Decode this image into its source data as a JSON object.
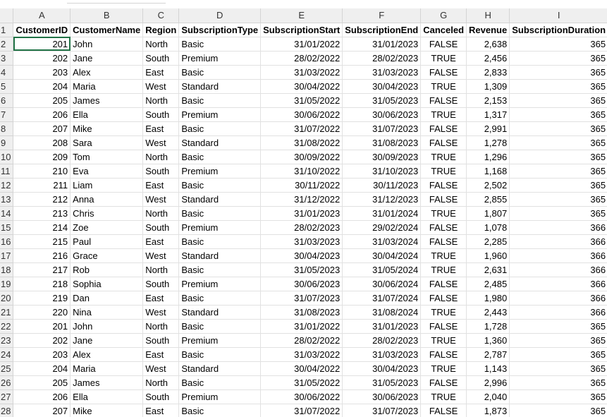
{
  "columns": [
    "A",
    "B",
    "C",
    "D",
    "E",
    "F",
    "G",
    "H",
    "I"
  ],
  "header": [
    "CustomerID",
    "CustomerName",
    "Region",
    "SubscriptionType",
    "SubscriptionStart",
    "SubscriptionEnd",
    "Canceled",
    "Revenue",
    "SubscriptionDuration"
  ],
  "row_numbers": [
    "1",
    "2",
    "3",
    "4",
    "5",
    "6",
    "7",
    "8",
    "9",
    "10",
    "11",
    "12",
    "13",
    "14",
    "15",
    "16",
    "17",
    "18",
    "19",
    "20",
    "21",
    "22",
    "23",
    "24",
    "25",
    "26",
    "27",
    "28"
  ],
  "rows": [
    [
      "201",
      "John",
      "North",
      "Basic",
      "31/01/2022",
      "31/01/2023",
      "FALSE",
      "2,638",
      "365"
    ],
    [
      "202",
      "Jane",
      "South",
      "Premium",
      "28/02/2022",
      "28/02/2023",
      "TRUE",
      "2,456",
      "365"
    ],
    [
      "203",
      "Alex",
      "East",
      "Basic",
      "31/03/2022",
      "31/03/2023",
      "FALSE",
      "2,833",
      "365"
    ],
    [
      "204",
      "Maria",
      "West",
      "Standard",
      "30/04/2022",
      "30/04/2023",
      "TRUE",
      "1,309",
      "365"
    ],
    [
      "205",
      "James",
      "North",
      "Basic",
      "31/05/2022",
      "31/05/2023",
      "FALSE",
      "2,153",
      "365"
    ],
    [
      "206",
      "Ella",
      "South",
      "Premium",
      "30/06/2022",
      "30/06/2023",
      "TRUE",
      "1,317",
      "365"
    ],
    [
      "207",
      "Mike",
      "East",
      "Basic",
      "31/07/2022",
      "31/07/2023",
      "FALSE",
      "2,991",
      "365"
    ],
    [
      "208",
      "Sara",
      "West",
      "Standard",
      "31/08/2022",
      "31/08/2023",
      "FALSE",
      "1,278",
      "365"
    ],
    [
      "209",
      "Tom",
      "North",
      "Basic",
      "30/09/2022",
      "30/09/2023",
      "TRUE",
      "1,296",
      "365"
    ],
    [
      "210",
      "Eva",
      "South",
      "Premium",
      "31/10/2022",
      "31/10/2023",
      "TRUE",
      "1,168",
      "365"
    ],
    [
      "211",
      "Liam",
      "East",
      "Basic",
      "30/11/2022",
      "30/11/2023",
      "FALSE",
      "2,502",
      "365"
    ],
    [
      "212",
      "Anna",
      "West",
      "Standard",
      "31/12/2022",
      "31/12/2023",
      "FALSE",
      "2,855",
      "365"
    ],
    [
      "213",
      "Chris",
      "North",
      "Basic",
      "31/01/2023",
      "31/01/2024",
      "TRUE",
      "1,807",
      "365"
    ],
    [
      "214",
      "Zoe",
      "South",
      "Premium",
      "28/02/2023",
      "29/02/2024",
      "FALSE",
      "1,078",
      "366"
    ],
    [
      "215",
      "Paul",
      "East",
      "Basic",
      "31/03/2023",
      "31/03/2024",
      "FALSE",
      "2,285",
      "366"
    ],
    [
      "216",
      "Grace",
      "West",
      "Standard",
      "30/04/2023",
      "30/04/2024",
      "TRUE",
      "1,960",
      "366"
    ],
    [
      "217",
      "Rob",
      "North",
      "Basic",
      "31/05/2023",
      "31/05/2024",
      "TRUE",
      "2,631",
      "366"
    ],
    [
      "218",
      "Sophia",
      "South",
      "Premium",
      "30/06/2023",
      "30/06/2024",
      "FALSE",
      "2,485",
      "366"
    ],
    [
      "219",
      "Dan",
      "East",
      "Basic",
      "31/07/2023",
      "31/07/2024",
      "FALSE",
      "1,980",
      "366"
    ],
    [
      "220",
      "Nina",
      "West",
      "Standard",
      "31/08/2023",
      "31/08/2024",
      "TRUE",
      "2,443",
      "366"
    ],
    [
      "201",
      "John",
      "North",
      "Basic",
      "31/01/2022",
      "31/01/2023",
      "FALSE",
      "1,728",
      "365"
    ],
    [
      "202",
      "Jane",
      "South",
      "Premium",
      "28/02/2022",
      "28/02/2023",
      "TRUE",
      "1,360",
      "365"
    ],
    [
      "203",
      "Alex",
      "East",
      "Basic",
      "31/03/2022",
      "31/03/2023",
      "FALSE",
      "2,787",
      "365"
    ],
    [
      "204",
      "Maria",
      "West",
      "Standard",
      "30/04/2022",
      "30/04/2023",
      "TRUE",
      "1,143",
      "365"
    ],
    [
      "205",
      "James",
      "North",
      "Basic",
      "31/05/2022",
      "31/05/2023",
      "FALSE",
      "2,996",
      "365"
    ],
    [
      "206",
      "Ella",
      "South",
      "Premium",
      "30/06/2022",
      "30/06/2023",
      "TRUE",
      "2,040",
      "365"
    ],
    [
      "207",
      "Mike",
      "East",
      "Basic",
      "31/07/2022",
      "31/07/2023",
      "FALSE",
      "1,873",
      "365"
    ]
  ]
}
